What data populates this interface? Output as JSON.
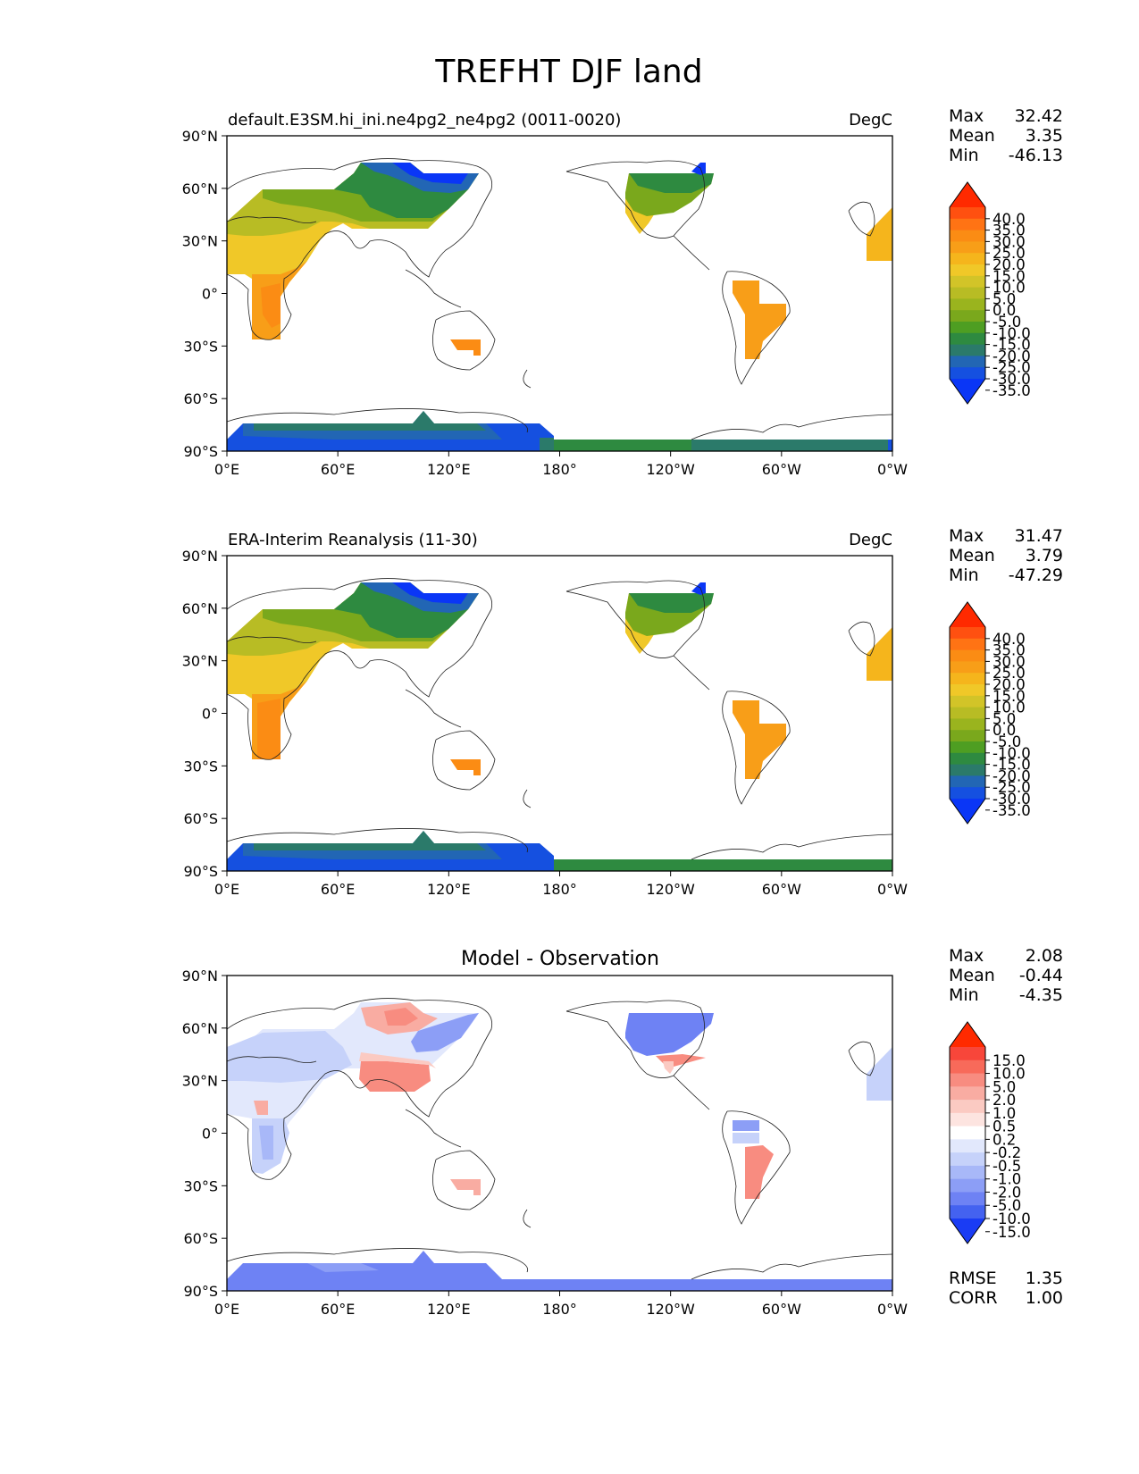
{
  "title": "TREFHT DJF land",
  "lat_ticks": [
    "90°N",
    "60°N",
    "30°N",
    "0°",
    "30°S",
    "60°S",
    "90°S"
  ],
  "lon_ticks": [
    "0°E",
    "60°E",
    "120°E",
    "180°",
    "120°W",
    "60°W",
    "0°W"
  ],
  "panels": [
    {
      "left_title": "default.E3SM.hi_ini.ne4pg2_ne4pg2 (0011-0020)",
      "center_title": "",
      "units": "DegC",
      "stats": [
        {
          "label": "Max",
          "value": "32.42"
        },
        {
          "label": "Mean",
          "value": "3.35"
        },
        {
          "label": "Min",
          "value": "-46.13"
        }
      ],
      "colorbar": {
        "labels": [
          "40.0",
          "35.0",
          "30.0",
          "25.0",
          "20.0",
          "15.0",
          "10.0",
          "5.0",
          "0.0",
          "-5.0",
          "-10.0",
          "-15.0",
          "-20.0",
          "-25.0",
          "-30.0",
          "-35.0"
        ],
        "colors": [
          "#ff2a00",
          "#ff5010",
          "#ff7314",
          "#fb8c14",
          "#f89e18",
          "#f5b51c",
          "#f0c828",
          "#d2c428",
          "#b8bc24",
          "#9ab41e",
          "#7aa81c",
          "#4e9e22",
          "#2e8a40",
          "#2b7a6a",
          "#2266b4",
          "#1550e0",
          "#0a36f6"
        ]
      },
      "stats_bottom": []
    },
    {
      "left_title": "ERA-Interim Reanalysis (11-30)",
      "center_title": "",
      "units": "DegC",
      "stats": [
        {
          "label": "Max",
          "value": "31.47"
        },
        {
          "label": "Mean",
          "value": "3.79"
        },
        {
          "label": "Min",
          "value": "-47.29"
        }
      ],
      "colorbar": {
        "labels": [
          "40.0",
          "35.0",
          "30.0",
          "25.0",
          "20.0",
          "15.0",
          "10.0",
          "5.0",
          "0.0",
          "-5.0",
          "-10.0",
          "-15.0",
          "-20.0",
          "-25.0",
          "-30.0",
          "-35.0"
        ],
        "colors": [
          "#ff2a00",
          "#ff5010",
          "#ff7314",
          "#fb8c14",
          "#f89e18",
          "#f5b51c",
          "#f0c828",
          "#d2c428",
          "#b8bc24",
          "#9ab41e",
          "#7aa81c",
          "#4e9e22",
          "#2e8a40",
          "#2b7a6a",
          "#2266b4",
          "#1550e0",
          "#0a36f6"
        ]
      },
      "stats_bottom": []
    },
    {
      "left_title": "",
      "center_title": "Model - Observation",
      "units": "",
      "stats": [
        {
          "label": "Max",
          "value": "2.08"
        },
        {
          "label": "Mean",
          "value": "-0.44"
        },
        {
          "label": "Min",
          "value": "-4.35"
        }
      ],
      "colorbar": {
        "labels": [
          "15.0",
          "10.0",
          "5.0",
          "2.0",
          "1.0",
          "0.5",
          "0.2",
          "-0.2",
          "-0.5",
          "-1.0",
          "-2.0",
          "-5.0",
          "-10.0",
          "-15.0"
        ],
        "colors": [
          "#ff2a00",
          "#f8463a",
          "#f86a5a",
          "#f88c80",
          "#f9aca2",
          "#fbcac2",
          "#fde4e0",
          "#ffffff",
          "#e2e8fc",
          "#c6d2fa",
          "#a8b8f8",
          "#8c9ef6",
          "#6e82f4",
          "#4462f0",
          "#1a3cf4"
        ]
      },
      "stats_bottom": [
        {
          "label": "RMSE",
          "value": "1.35"
        },
        {
          "label": "CORR",
          "value": "1.00"
        }
      ]
    }
  ]
}
